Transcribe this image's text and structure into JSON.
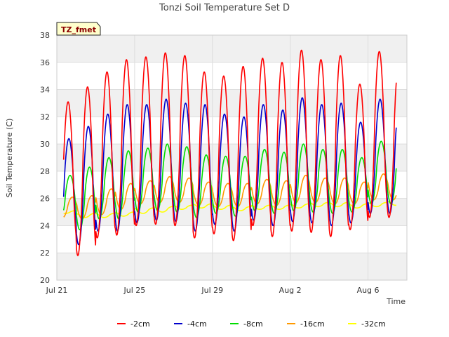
{
  "chart_data": {
    "type": "line",
    "title": "Tonzi Soil Temperature Set D",
    "xlabel": "Time",
    "ylabel": "Soil Temperature (C)",
    "badge": "TZ_fmet",
    "ylim": [
      20,
      38
    ],
    "yticks": [
      20,
      22,
      24,
      26,
      28,
      30,
      32,
      34,
      36,
      38
    ],
    "xlim": [
      "2023-07-21",
      "2023-08-08"
    ],
    "xticks": [
      {
        "date": "2023-07-21",
        "label": "Jul 21"
      },
      {
        "date": "2023-07-25",
        "label": "Jul 25"
      },
      {
        "date": "2023-07-29",
        "label": "Jul 29"
      },
      {
        "date": "2023-08-02",
        "label": "Aug 2"
      },
      {
        "date": "2023-08-06",
        "label": "Aug 6"
      }
    ],
    "grid": true,
    "legend_position": "bottom",
    "daily_cycle": {
      "days": [
        "2023-07-21",
        "2023-07-22",
        "2023-07-23",
        "2023-07-24",
        "2023-07-25",
        "2023-07-26",
        "2023-07-27",
        "2023-07-28",
        "2023-07-29",
        "2023-07-30",
        "2023-07-31",
        "2023-08-01",
        "2023-08-02",
        "2023-08-03",
        "2023-08-04",
        "2023-08-05",
        "2023-08-06",
        "2023-08-07"
      ],
      "series": [
        {
          "name": "-2cm",
          "color": "#ff0000",
          "max": [
            33.1,
            34.2,
            35.3,
            36.2,
            36.4,
            36.7,
            36.5,
            35.3,
            35.0,
            35.7,
            36.3,
            36.0,
            36.9,
            36.2,
            36.5,
            34.4,
            36.8,
            36.0
          ],
          "min": [
            22.6,
            21.8,
            23.1,
            23.3,
            24.0,
            24.1,
            24.0,
            23.1,
            23.4,
            22.9,
            24.0,
            23.2,
            23.6,
            23.5,
            23.2,
            23.7,
            24.6,
            24.6
          ]
        },
        {
          "name": "-4cm",
          "color": "#0000cc",
          "max": [
            30.4,
            31.3,
            32.2,
            32.9,
            32.9,
            33.3,
            33.0,
            32.9,
            32.2,
            32.0,
            32.9,
            32.5,
            33.4,
            32.9,
            33.0,
            31.6,
            33.3,
            33.0
          ],
          "min": [
            23.2,
            22.6,
            23.6,
            23.6,
            24.2,
            24.4,
            24.3,
            23.6,
            24.1,
            23.6,
            24.4,
            24.0,
            24.3,
            24.2,
            24.0,
            24.2,
            24.9,
            24.9
          ]
        },
        {
          "name": "-8cm",
          "color": "#00dd00",
          "max": [
            27.7,
            28.3,
            29.0,
            29.5,
            29.7,
            30.0,
            29.8,
            29.2,
            29.1,
            29.1,
            29.6,
            29.4,
            30.0,
            29.6,
            29.6,
            29.0,
            30.2,
            30.0
          ],
          "min": [
            24.4,
            23.7,
            24.5,
            24.5,
            25.0,
            25.1,
            25.0,
            24.6,
            24.9,
            24.7,
            25.1,
            24.9,
            25.1,
            25.0,
            24.9,
            25.0,
            25.6,
            25.6
          ]
        },
        {
          "name": "-16cm",
          "color": "#ff9900",
          "max": [
            26.1,
            26.2,
            26.7,
            27.1,
            27.3,
            27.6,
            27.5,
            27.2,
            27.1,
            27.1,
            27.4,
            27.3,
            27.7,
            27.5,
            27.5,
            27.2,
            27.8,
            27.8
          ],
          "min": [
            24.6,
            24.5,
            24.8,
            25.2,
            25.6,
            25.7,
            25.7,
            25.5,
            25.4,
            25.4,
            25.6,
            25.5,
            25.7,
            25.7,
            25.6,
            25.6,
            25.9,
            25.9
          ]
        },
        {
          "name": "-32cm",
          "color": "#ffff00",
          "max": [
            25.1,
            24.9,
            24.9,
            25.0,
            25.3,
            25.4,
            25.5,
            25.6,
            25.5,
            25.4,
            25.5,
            25.5,
            25.6,
            25.7,
            25.7,
            25.6,
            25.7,
            25.8
          ],
          "min": [
            24.9,
            24.6,
            24.6,
            24.7,
            24.9,
            25.0,
            25.2,
            25.3,
            25.2,
            25.1,
            25.2,
            25.2,
            25.3,
            25.4,
            25.4,
            25.3,
            25.4,
            25.5
          ]
        }
      ]
    }
  }
}
